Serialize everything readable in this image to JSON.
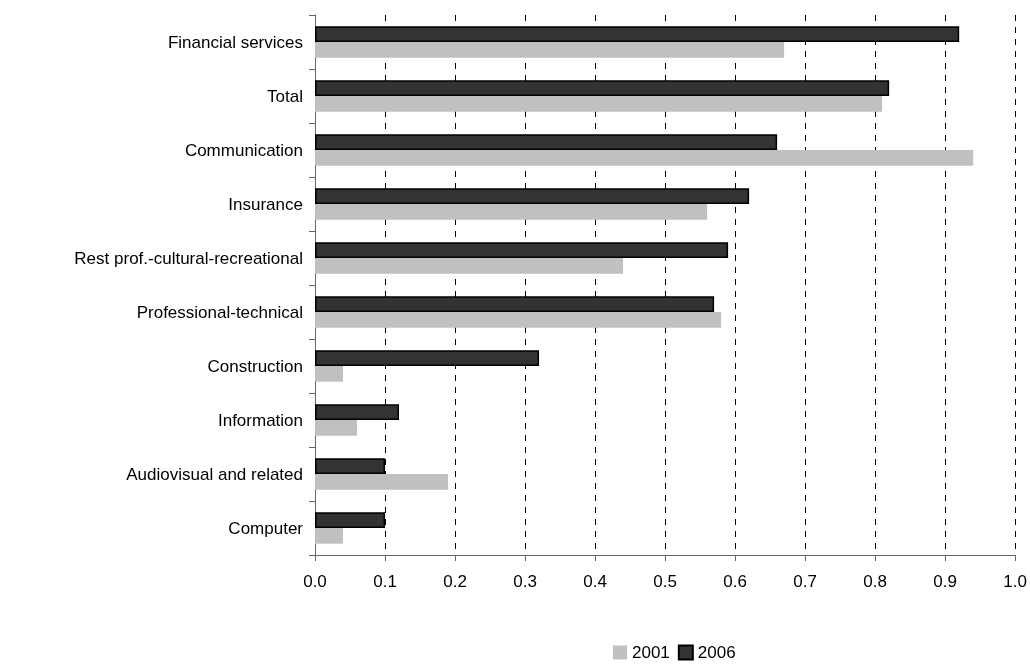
{
  "chart_data": {
    "type": "bar",
    "orientation": "horizontal",
    "categories": [
      "Financial services",
      "Total",
      "Communication",
      "Insurance",
      "Rest prof.-cultural-recreational",
      "Professional-technical",
      "Construction",
      "Information",
      "Audiovisual and related",
      "Computer"
    ],
    "series": [
      {
        "name": "2001",
        "color": "#c0c0c0",
        "values": [
          0.67,
          0.81,
          0.94,
          0.56,
          0.44,
          0.58,
          0.04,
          0.06,
          0.19,
          0.04
        ]
      },
      {
        "name": "2006",
        "color": "#333333",
        "values": [
          0.92,
          0.82,
          0.66,
          0.62,
          0.59,
          0.57,
          0.32,
          0.12,
          0.1,
          0.1
        ]
      }
    ],
    "xlim": [
      0,
      1
    ],
    "xticks": [
      {
        "value": 0,
        "label": "0.0"
      },
      0.1,
      0.2,
      0.3,
      0.4,
      0.5,
      0.6,
      0.7,
      0.8,
      0.9,
      {
        "value": 1,
        "label": "1.0"
      }
    ],
    "grid": "x",
    "legend": "bottom"
  }
}
